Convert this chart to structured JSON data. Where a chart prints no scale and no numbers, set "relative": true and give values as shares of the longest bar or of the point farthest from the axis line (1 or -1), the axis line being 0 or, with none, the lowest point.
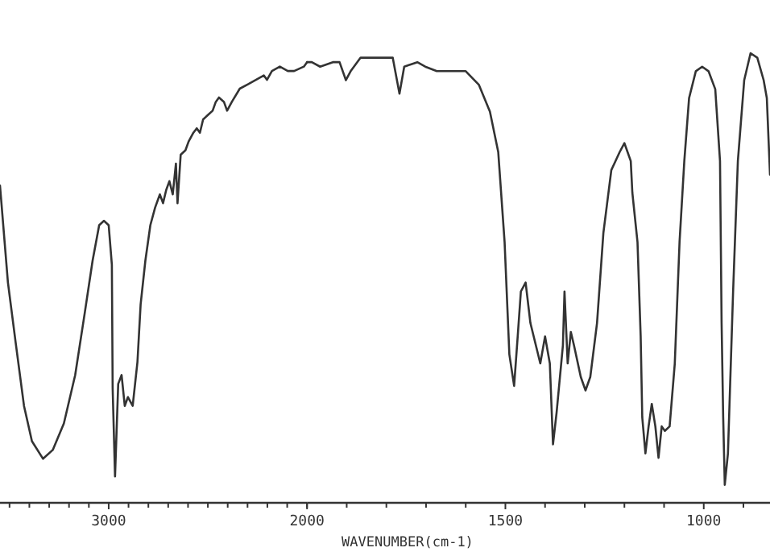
{
  "chart_data": [
    {
      "type": "line",
      "relative": true,
      "grid": false,
      "marker": "none",
      "line_style": "solid",
      "xlim": [
        3548,
        2000
      ],
      "xticks": [
        {
          "value": 3500,
          "label": null
        },
        {
          "value": 3400,
          "label": null
        },
        {
          "value": 3300,
          "label": null
        },
        {
          "value": 3200,
          "label": null
        },
        {
          "value": 3100,
          "label": null
        },
        3000,
        {
          "value": 2900,
          "label": null
        },
        {
          "value": 2800,
          "label": null
        },
        {
          "value": 2700,
          "label": null
        },
        {
          "value": 2600,
          "label": null
        },
        {
          "value": 2500,
          "label": null
        },
        {
          "value": 2400,
          "label": null
        },
        {
          "value": 2300,
          "label": null
        },
        {
          "value": 2200,
          "label": null
        },
        {
          "value": 2100,
          "label": null
        },
        2000
      ],
      "series": [
        {
          "color": "#333333",
          "x": [
            3548,
            3508,
            3468,
            3427,
            3387,
            3331,
            3282,
            3226,
            3169,
            3121,
            3081,
            3048,
            3024,
            3000,
            2984,
            2980,
            2968,
            2952,
            2935,
            2919,
            2903,
            2879,
            2855,
            2839,
            2815,
            2790,
            2766,
            2742,
            2726,
            2710,
            2694,
            2677,
            2661,
            2653,
            2637,
            2613,
            2597,
            2573,
            2556,
            2540,
            2524,
            2500,
            2476,
            2460,
            2444,
            2419,
            2403,
            2379,
            2339,
            2298,
            2258,
            2218,
            2202,
            2177,
            2137,
            2097,
            2065,
            2016,
            2000
          ],
          "values": [
            0.72,
            0.5,
            0.36,
            0.22,
            0.14,
            0.1,
            0.12,
            0.18,
            0.29,
            0.43,
            0.55,
            0.63,
            0.64,
            0.63,
            0.54,
            0.26,
            0.06,
            0.27,
            0.29,
            0.22,
            0.24,
            0.22,
            0.32,
            0.45,
            0.55,
            0.63,
            0.67,
            0.7,
            0.68,
            0.71,
            0.73,
            0.7,
            0.77,
            0.68,
            0.79,
            0.8,
            0.82,
            0.84,
            0.85,
            0.84,
            0.87,
            0.88,
            0.89,
            0.91,
            0.92,
            0.91,
            0.89,
            0.91,
            0.94,
            0.95,
            0.96,
            0.97,
            0.96,
            0.98,
            0.99,
            0.98,
            0.98,
            0.99,
            1
          ]
        }
      ]
    },
    {
      "type": "line",
      "relative": true,
      "grid": false,
      "marker": "none",
      "line_style": "solid",
      "xlabel": "WAVENUMBER(cm-1)",
      "xlim": [
        2000,
        833
      ],
      "xticks": [
        {
          "value": 2000,
          "label": null
        },
        {
          "value": 1900,
          "label": null
        },
        {
          "value": 1800,
          "label": null
        },
        {
          "value": 1700,
          "label": null
        },
        {
          "value": 1600,
          "label": null
        },
        1500,
        {
          "value": 1400,
          "label": null
        },
        {
          "value": 1300,
          "label": null
        },
        {
          "value": 1200,
          "label": null
        },
        {
          "value": 1100,
          "label": null
        },
        1000,
        {
          "value": 900,
          "label": null
        }
      ],
      "series": [
        {
          "color": "#333333",
          "x": [
            2000,
            1988,
            1967,
            1935,
            1918,
            1902,
            1890,
            1865,
            1845,
            1824,
            1812,
            1784,
            1767,
            1755,
            1722,
            1702,
            1673,
            1641,
            1600,
            1567,
            1539,
            1518,
            1502,
            1490,
            1478,
            1469,
            1461,
            1449,
            1437,
            1412,
            1400,
            1388,
            1380,
            1371,
            1355,
            1351,
            1343,
            1335,
            1327,
            1310,
            1298,
            1286,
            1269,
            1253,
            1233,
            1212,
            1200,
            1192,
            1184,
            1180,
            1167,
            1159,
            1155,
            1147,
            1139,
            1131,
            1122,
            1114,
            1106,
            1098,
            1086,
            1073,
            1061,
            1049,
            1037,
            1020,
            1004,
            988,
            971,
            959,
            955,
            951,
            947,
            939,
            926,
            914,
            898,
            882,
            865,
            849,
            841,
            833
          ],
          "values": [
            0.98,
            0.98,
            0.97,
            0.98,
            0.98,
            0.94,
            0.96,
            0.99,
            0.99,
            0.99,
            0.99,
            0.99,
            0.91,
            0.97,
            0.98,
            0.97,
            0.96,
            0.96,
            0.96,
            0.93,
            0.87,
            0.78,
            0.58,
            0.33,
            0.26,
            0.37,
            0.47,
            0.49,
            0.4,
            0.31,
            0.37,
            0.31,
            0.13,
            0.2,
            0.35,
            0.47,
            0.31,
            0.38,
            0.35,
            0.28,
            0.25,
            0.28,
            0.4,
            0.6,
            0.74,
            0.78,
            0.8,
            0.78,
            0.76,
            0.69,
            0.58,
            0.37,
            0.19,
            0.11,
            0.17,
            0.22,
            0.17,
            0.1,
            0.17,
            0.16,
            0.17,
            0.31,
            0.58,
            0.76,
            0.9,
            0.96,
            0.97,
            0.96,
            0.92,
            0.76,
            0.4,
            0.19,
            0.04,
            0.11,
            0.47,
            0.76,
            0.94,
            1,
            0.99,
            0.94,
            0.9,
            0.73
          ]
        }
      ]
    }
  ]
}
